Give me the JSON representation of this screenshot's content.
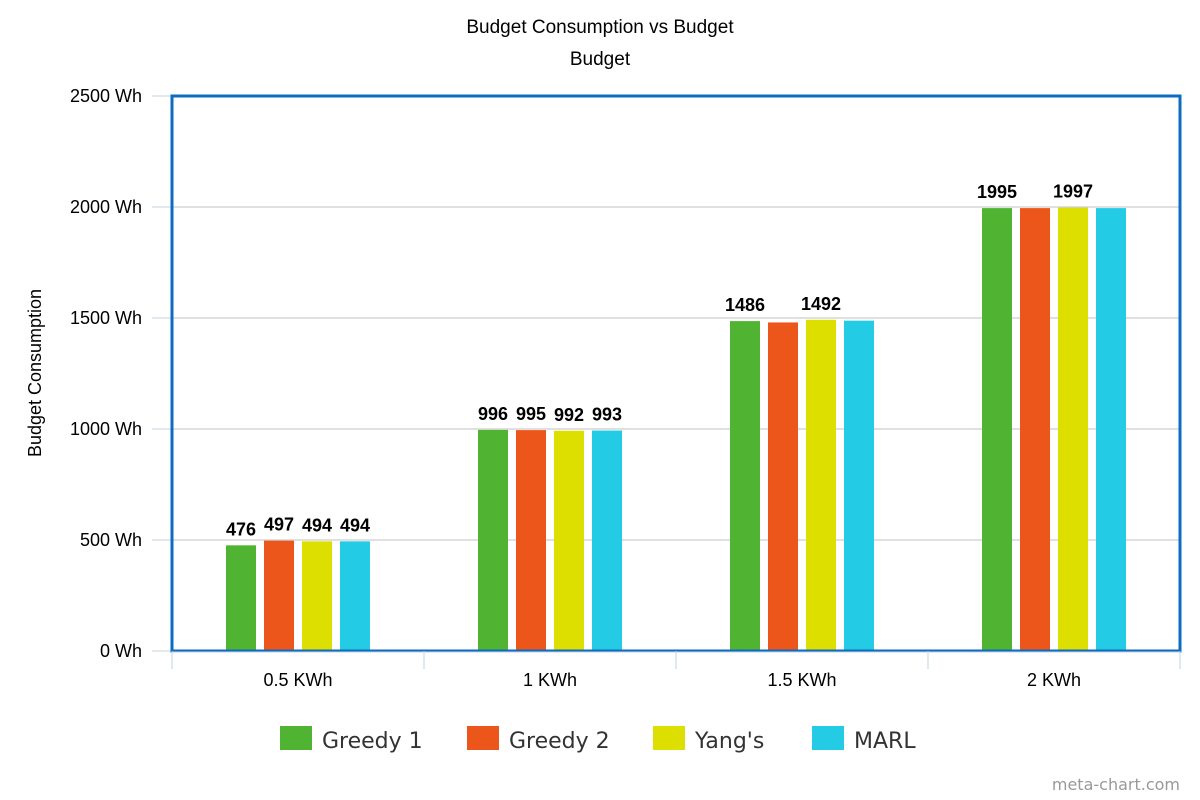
{
  "chart_data": {
    "type": "bar",
    "title": "Budget Consumption vs Budget",
    "subtitle": "Budget",
    "xlabel": "",
    "ylabel": "Budget Consumption",
    "categories": [
      "0.5 KWh",
      "1 KWh",
      "1.5 KWh",
      "2 KWh"
    ],
    "ylim": [
      0,
      2500
    ],
    "yticks": [
      0,
      500,
      1000,
      1500,
      2000,
      2500
    ],
    "y_unit_suffix": " Wh",
    "grid": true,
    "legend_position": "bottom",
    "series": [
      {
        "name": "Greedy 1",
        "color": "#50b432",
        "values": [
          476,
          996,
          1486,
          1995
        ],
        "labels": [
          "476",
          "996",
          "1486",
          "1995"
        ]
      },
      {
        "name": "Greedy 2",
        "color": "#ed561b",
        "values": [
          497,
          995,
          1480,
          1995
        ],
        "labels": [
          "497",
          "995",
          "",
          ""
        ]
      },
      {
        "name": "Yang's",
        "color": "#dddf00",
        "values": [
          494,
          992,
          1492,
          1997
        ],
        "labels": [
          "494",
          "992",
          "1492",
          "1997"
        ]
      },
      {
        "name": "MARL",
        "color": "#24cbe5",
        "values": [
          494,
          993,
          1488,
          1995
        ],
        "labels": [
          "494",
          "993",
          "",
          ""
        ]
      }
    ]
  },
  "credit": "meta-chart.com"
}
